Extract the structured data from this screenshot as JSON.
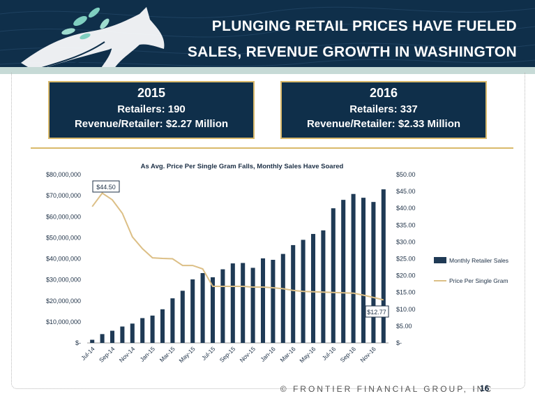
{
  "header": {
    "title_line1": "PLUNGING RETAIL PRICES HAVE FUELED",
    "title_line2": "SALES, REVENUE GROWTH IN WASHINGTON"
  },
  "boxes": [
    {
      "year": "2015",
      "retailers": "Retailers: 190",
      "revenue": "Revenue/Retailer: $2.27 Million"
    },
    {
      "year": "2016",
      "retailers": "Retailers: 337",
      "revenue": "Revenue/Retailer: $2.33 Million"
    }
  ],
  "footer": {
    "text": "© FRONTIER FINANCIAL GROUP, INC",
    "separator": "·",
    "page": "16"
  },
  "colors": {
    "navy": "#0f2f4a",
    "gold": "#d9b96a",
    "bar": "#1f3a55",
    "line": "#dcbf86"
  },
  "chart_data": {
    "type": "bar",
    "title": "As Avg. Price Per Single Gram Falls, Monthly Sales Have Soared",
    "x_tick_labels": [
      "Jul-14",
      "Sep-14",
      "Nov-14",
      "Jan-15",
      "Mar-15",
      "May-15",
      "Jul-15",
      "Sep-15",
      "Nov-15",
      "Jan-16",
      "Mar-16",
      "May-16",
      "Jul-16",
      "Sep-16",
      "Nov-16"
    ],
    "y_left_ticks": [
      "$-",
      "$10,000,000",
      "$20,000,000",
      "$30,000,000",
      "$40,000,000",
      "$50,000,000",
      "$60,000,000",
      "$70,000,000",
      "$80,000,000"
    ],
    "y_right_ticks": [
      "$-",
      "$5.00",
      "$10.00",
      "$15.00",
      "$20.00",
      "$25.00",
      "$30.00",
      "$35.00",
      "$40.00",
      "$45.00",
      "$50.00"
    ],
    "ylim_left": [
      0,
      80000000
    ],
    "ylim_right": [
      0,
      50
    ],
    "series": [
      {
        "name": "Monthly Retailer Sales",
        "type": "bar",
        "axis": "left",
        "values": [
          1500000,
          4200000,
          5800000,
          7800000,
          9200000,
          11800000,
          13000000,
          16000000,
          21200000,
          24800000,
          30200000,
          33200000,
          31200000,
          35000000,
          37800000,
          38000000,
          35700000,
          40200000,
          39500000,
          42300000,
          46500000,
          49000000,
          51800000,
          53500000,
          64000000,
          68000000,
          70800000,
          69000000,
          67000000,
          73000000
        ]
      },
      {
        "name": "Price Per Single Gram",
        "type": "line",
        "axis": "right",
        "values": [
          40.5,
          44.5,
          42.5,
          38.5,
          31.5,
          28,
          25.3,
          25.1,
          25,
          23,
          23,
          22,
          16.8,
          16.8,
          16.8,
          16.8,
          16.6,
          16.6,
          16.4,
          16.1,
          15.6,
          15.3,
          15.2,
          15.1,
          15,
          14.9,
          14.8,
          14.2,
          13.5,
          12.77
        ]
      }
    ],
    "annotations": [
      "$44.50",
      "$12.77"
    ],
    "legend_position": "right"
  }
}
